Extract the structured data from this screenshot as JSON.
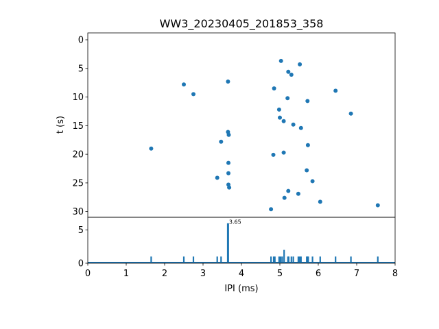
{
  "chart_data": [
    {
      "type": "scatter",
      "title": "WW3_20230405_201853_358",
      "ylabel": "t (s)",
      "y_inverted": true,
      "xlim": [
        0,
        8
      ],
      "ylim": [
        31,
        -1.2
      ],
      "yticks": [
        0,
        5,
        10,
        15,
        20,
        25,
        30
      ],
      "color": "#1f77b4",
      "points": [
        {
          "x": 5.03,
          "y": 3.7
        },
        {
          "x": 5.52,
          "y": 4.3
        },
        {
          "x": 5.22,
          "y": 5.6
        },
        {
          "x": 5.3,
          "y": 6.1
        },
        {
          "x": 3.65,
          "y": 7.3
        },
        {
          "x": 2.5,
          "y": 7.8
        },
        {
          "x": 4.85,
          "y": 8.5
        },
        {
          "x": 6.45,
          "y": 8.9
        },
        {
          "x": 2.75,
          "y": 9.5
        },
        {
          "x": 5.2,
          "y": 10.2
        },
        {
          "x": 5.72,
          "y": 10.7
        },
        {
          "x": 4.98,
          "y": 12.2
        },
        {
          "x": 6.85,
          "y": 12.9
        },
        {
          "x": 5.0,
          "y": 13.6
        },
        {
          "x": 5.1,
          "y": 14.2
        },
        {
          "x": 5.35,
          "y": 14.8
        },
        {
          "x": 5.55,
          "y": 15.4
        },
        {
          "x": 3.65,
          "y": 16.1
        },
        {
          "x": 3.67,
          "y": 16.6
        },
        {
          "x": 3.47,
          "y": 17.8
        },
        {
          "x": 5.73,
          "y": 18.4
        },
        {
          "x": 1.65,
          "y": 19.0
        },
        {
          "x": 5.1,
          "y": 19.7
        },
        {
          "x": 4.83,
          "y": 20.1
        },
        {
          "x": 3.66,
          "y": 21.5
        },
        {
          "x": 5.7,
          "y": 22.8
        },
        {
          "x": 3.66,
          "y": 23.3
        },
        {
          "x": 3.37,
          "y": 24.1
        },
        {
          "x": 5.85,
          "y": 24.7
        },
        {
          "x": 3.66,
          "y": 25.3
        },
        {
          "x": 3.68,
          "y": 25.8
        },
        {
          "x": 5.22,
          "y": 26.4
        },
        {
          "x": 5.48,
          "y": 26.9
        },
        {
          "x": 5.12,
          "y": 27.6
        },
        {
          "x": 6.05,
          "y": 28.3
        },
        {
          "x": 7.55,
          "y": 28.9
        },
        {
          "x": 4.77,
          "y": 29.6
        }
      ]
    },
    {
      "type": "bar",
      "xlabel": "IPI (ms)",
      "xlim": [
        0,
        8
      ],
      "ylim": [
        0,
        6.9
      ],
      "xticks": [
        0,
        1,
        2,
        3,
        4,
        5,
        6,
        7,
        8
      ],
      "yticks": [
        0,
        5
      ],
      "color": "#1f77b4",
      "peak_label": "3.65",
      "bars": [
        {
          "x": 1.65,
          "count": 1
        },
        {
          "x": 2.5,
          "count": 1
        },
        {
          "x": 2.75,
          "count": 1
        },
        {
          "x": 3.37,
          "count": 1
        },
        {
          "x": 3.47,
          "count": 1
        },
        {
          "x": 3.65,
          "count": 6
        },
        {
          "x": 4.77,
          "count": 1
        },
        {
          "x": 4.84,
          "count": 1
        },
        {
          "x": 4.87,
          "count": 1
        },
        {
          "x": 4.98,
          "count": 1
        },
        {
          "x": 5.02,
          "count": 1
        },
        {
          "x": 5.06,
          "count": 1
        },
        {
          "x": 5.11,
          "count": 2
        },
        {
          "x": 5.21,
          "count": 1
        },
        {
          "x": 5.23,
          "count": 1
        },
        {
          "x": 5.3,
          "count": 1
        },
        {
          "x": 5.35,
          "count": 1
        },
        {
          "x": 5.48,
          "count": 1
        },
        {
          "x": 5.52,
          "count": 1
        },
        {
          "x": 5.55,
          "count": 1
        },
        {
          "x": 5.7,
          "count": 1
        },
        {
          "x": 5.72,
          "count": 1
        },
        {
          "x": 5.74,
          "count": 1
        },
        {
          "x": 5.85,
          "count": 1
        },
        {
          "x": 6.05,
          "count": 1
        },
        {
          "x": 6.45,
          "count": 1
        },
        {
          "x": 6.85,
          "count": 1
        },
        {
          "x": 7.55,
          "count": 1
        }
      ]
    }
  ]
}
